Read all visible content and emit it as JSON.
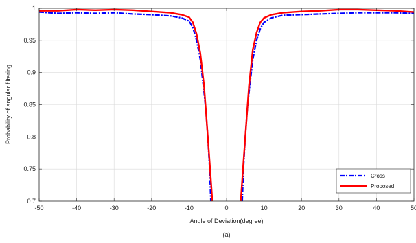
{
  "chart_data": {
    "type": "line",
    "title": "",
    "caption": "(a)",
    "xlabel": "Angle of Deviation(degree)",
    "ylabel": "Probability of angular filtering",
    "xlim": [
      -50,
      50
    ],
    "ylim": [
      0.7,
      1.0
    ],
    "xticks": [
      -50,
      -40,
      -30,
      -20,
      -10,
      0,
      10,
      20,
      30,
      40,
      50
    ],
    "yticks": [
      0.7,
      0.75,
      0.8,
      0.85,
      0.9,
      0.95,
      1
    ],
    "ytick_labels": [
      "0.7",
      "0.75",
      "0.8",
      "0.85",
      "0.9",
      "0.95",
      "1"
    ],
    "grid": true,
    "legend_placement": "bottom-right",
    "series": [
      {
        "name": "Cross",
        "color": "#0000ff",
        "style": "dash-dot",
        "x": [
          -50,
          -45,
          -40,
          -35,
          -30,
          -25,
          -20,
          -15,
          -12,
          -10,
          -9,
          -8,
          -7,
          -6,
          -5.5,
          -5,
          -4.5,
          -4.2,
          4.2,
          4.5,
          5,
          5.5,
          6,
          7,
          8,
          9,
          10,
          12,
          15,
          20,
          25,
          30,
          35,
          40,
          45,
          50
        ],
        "y": [
          0.994,
          0.992,
          0.993,
          0.992,
          0.993,
          0.991,
          0.99,
          0.988,
          0.985,
          0.98,
          0.97,
          0.95,
          0.92,
          0.87,
          0.84,
          0.8,
          0.75,
          0.7,
          0.7,
          0.75,
          0.8,
          0.84,
          0.87,
          0.92,
          0.95,
          0.968,
          0.978,
          0.985,
          0.989,
          0.99,
          0.991,
          0.992,
          0.993,
          0.993,
          0.993,
          0.992
        ]
      },
      {
        "name": "Proposed",
        "color": "#ff0000",
        "style": "solid",
        "x": [
          -50,
          -45,
          -40,
          -35,
          -30,
          -25,
          -20,
          -15,
          -12,
          -10,
          -9,
          -8,
          -7,
          -6,
          -5.5,
          -5,
          -4.5,
          -3.8,
          3.8,
          4.5,
          5,
          5.5,
          6,
          7,
          8,
          9,
          10,
          12,
          15,
          20,
          25,
          30,
          35,
          40,
          45,
          50
        ],
        "y": [
          0.996,
          0.996,
          0.998,
          0.997,
          0.998,
          0.997,
          0.995,
          0.993,
          0.99,
          0.986,
          0.978,
          0.96,
          0.93,
          0.88,
          0.84,
          0.8,
          0.76,
          0.7,
          0.7,
          0.76,
          0.8,
          0.84,
          0.88,
          0.935,
          0.962,
          0.978,
          0.985,
          0.99,
          0.993,
          0.995,
          0.996,
          0.998,
          0.998,
          0.997,
          0.996,
          0.994
        ]
      }
    ]
  }
}
